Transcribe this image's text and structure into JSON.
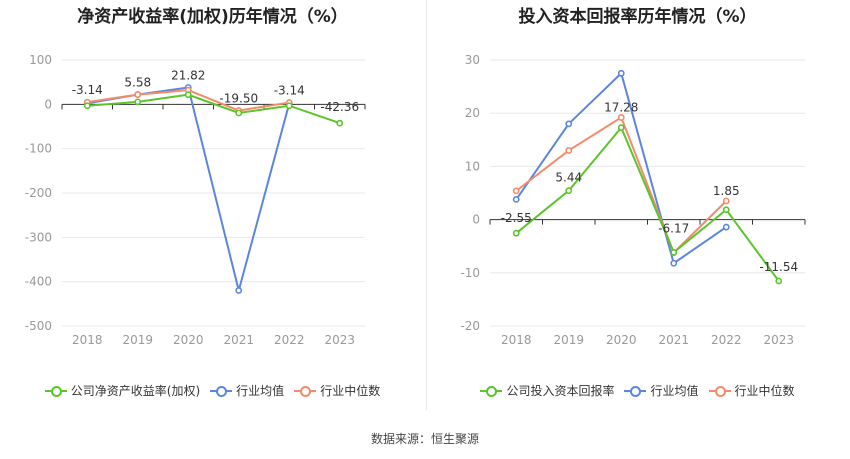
{
  "source_label": "数据来源：恒生聚源",
  "colors": {
    "company": "#5cc42b",
    "avg": "#5b85de",
    "median": "#f38b6b"
  },
  "legend": {
    "avg": "行业均值",
    "median": "行业中位数"
  },
  "chart_data": [
    {
      "type": "line",
      "title": "净资产收益率(加权)历年情况（%）",
      "categories": [
        "2018",
        "2019",
        "2020",
        "2021",
        "2022",
        "2023"
      ],
      "ylim": [
        -500,
        100
      ],
      "yticks": [
        100,
        0,
        -100,
        -200,
        -300,
        -400,
        -500
      ],
      "series": [
        {
          "key": "company",
          "name": "公司净资产收益率(加权)",
          "values": [
            -3.14,
            5.58,
            21.82,
            -19.5,
            -3.14,
            -42.36
          ],
          "labels": [
            "-3.14",
            "5.58",
            "21.82",
            "-19.50",
            "-3.14",
            "-42.36"
          ]
        },
        {
          "key": "avg",
          "name": "行业均值",
          "values": [
            2,
            22,
            38,
            -420,
            2,
            null
          ]
        },
        {
          "key": "median",
          "name": "行业中位数",
          "values": [
            5,
            22,
            32,
            -14,
            4,
            null
          ]
        }
      ]
    },
    {
      "type": "line",
      "title": "投入资本回报率历年情况（%）",
      "categories": [
        "2018",
        "2019",
        "2020",
        "2021",
        "2022",
        "2023"
      ],
      "ylim": [
        -20,
        30
      ],
      "yticks": [
        30,
        20,
        10,
        0,
        -10,
        -20
      ],
      "series": [
        {
          "key": "company",
          "name": "公司投入资本回报率",
          "values": [
            -2.55,
            5.44,
            17.28,
            -6.17,
            1.85,
            -11.54
          ],
          "labels": [
            "-2.55",
            "5.44",
            "17.28",
            "-6.17",
            "1.85",
            "-11.54"
          ]
        },
        {
          "key": "avg",
          "name": "行业均值",
          "values": [
            3.8,
            18,
            27.5,
            -8.2,
            -1.4,
            null
          ]
        },
        {
          "key": "median",
          "name": "行业中位数",
          "values": [
            5.4,
            13,
            19.2,
            -6.2,
            3.5,
            null
          ]
        }
      ]
    }
  ]
}
